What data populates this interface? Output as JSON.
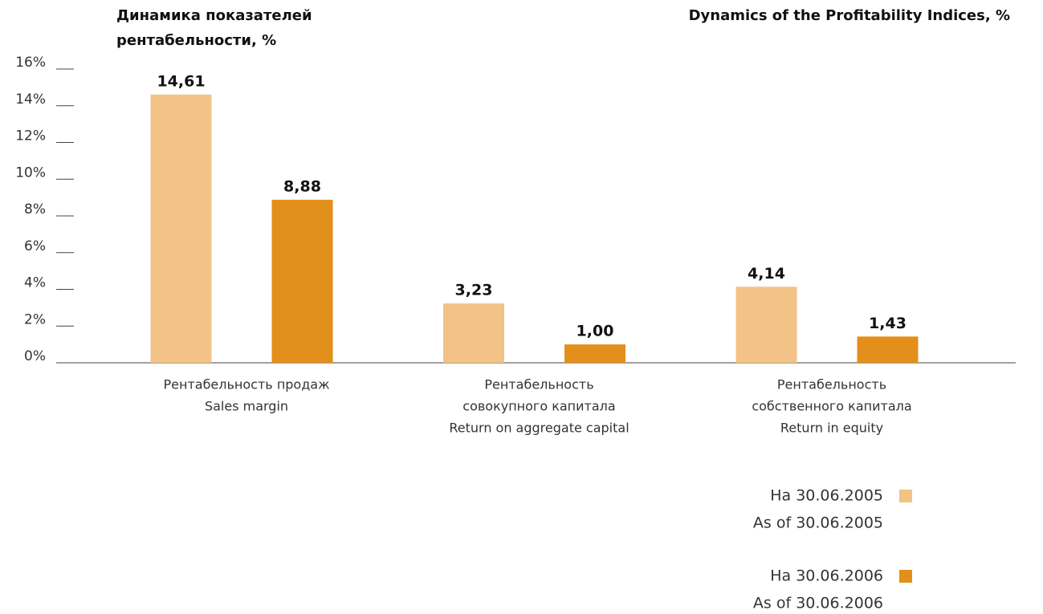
{
  "chart_data": {
    "type": "bar",
    "title": [
      "Динамика показателей",
      "рентабельности, %"
    ],
    "title_en": "Dynamics of the Profitability Indices, %",
    "categories": [
      [
        "Рентабельность продаж",
        "Sales margin"
      ],
      [
        "Рентабельность",
        "совокупного капитала",
        "Return on aggregate capital"
      ],
      [
        "Рентабельность",
        "собственного капитала",
        "Return in equity"
      ]
    ],
    "series": [
      {
        "name": [
          "На 30.06.2005",
          "As of 30.06.2005"
        ],
        "color": "#f2c287",
        "values": [
          14.61,
          3.23,
          4.14
        ],
        "value_labels": [
          "14,61",
          "3,23",
          "4,14"
        ]
      },
      {
        "name": [
          "На 30.06.2006",
          "As of 30.06.2006"
        ],
        "color": "#e38f1b",
        "values": [
          8.88,
          1.0,
          1.43
        ],
        "value_labels": [
          "8,88",
          "1,00",
          "1,43"
        ]
      }
    ],
    "ylim": [
      0,
      16
    ],
    "yticks": [
      {
        "value": 0,
        "label": "0%"
      },
      {
        "value": 2,
        "label": "2%"
      },
      {
        "value": 4,
        "label": "4%"
      },
      {
        "value": 6,
        "label": "6%"
      },
      {
        "value": 8,
        "label": "8%"
      },
      {
        "value": 10,
        "label": "10%"
      },
      {
        "value": 12,
        "label": "12%"
      },
      {
        "value": 14,
        "label": "14%"
      },
      {
        "value": 16,
        "label": "16%"
      }
    ]
  }
}
